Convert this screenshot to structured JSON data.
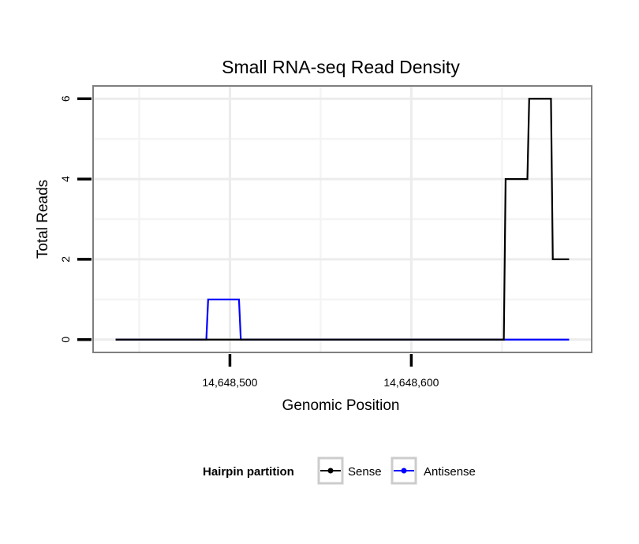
{
  "chart_data": {
    "type": "line",
    "title": "Small RNA-seq Read Density",
    "xlabel": "Genomic Position",
    "ylabel": "Total Reads",
    "x_ticks": [
      {
        "value": 14648500,
        "label": "14,648,500"
      },
      {
        "value": 14648600,
        "label": "14,648,600"
      }
    ],
    "y_ticks": [
      {
        "value": 0,
        "label": "0"
      },
      {
        "value": 2,
        "label": "2"
      },
      {
        "value": 4,
        "label": "4"
      },
      {
        "value": 6,
        "label": "6"
      }
    ],
    "xlim": [
      14648425,
      14648699
    ],
    "ylim": [
      -0.3,
      6.3
    ],
    "grid": true,
    "legend": {
      "title": "Hairpin partition",
      "placement": "bottom"
    },
    "series": [
      {
        "name": "Sense",
        "color": "#000000",
        "points": [
          [
            14648437,
            0
          ],
          [
            14648651,
            0
          ],
          [
            14648652,
            4
          ],
          [
            14648664,
            4
          ],
          [
            14648665,
            6
          ],
          [
            14648677,
            6
          ],
          [
            14648678,
            2
          ],
          [
            14648687,
            2
          ]
        ]
      },
      {
        "name": "Antisense",
        "color": "#0000ff",
        "points": [
          [
            14648437,
            0
          ],
          [
            14648487,
            0
          ],
          [
            14648488,
            1
          ],
          [
            14648505,
            1
          ],
          [
            14648506,
            0
          ],
          [
            14648687,
            0
          ]
        ]
      }
    ]
  }
}
